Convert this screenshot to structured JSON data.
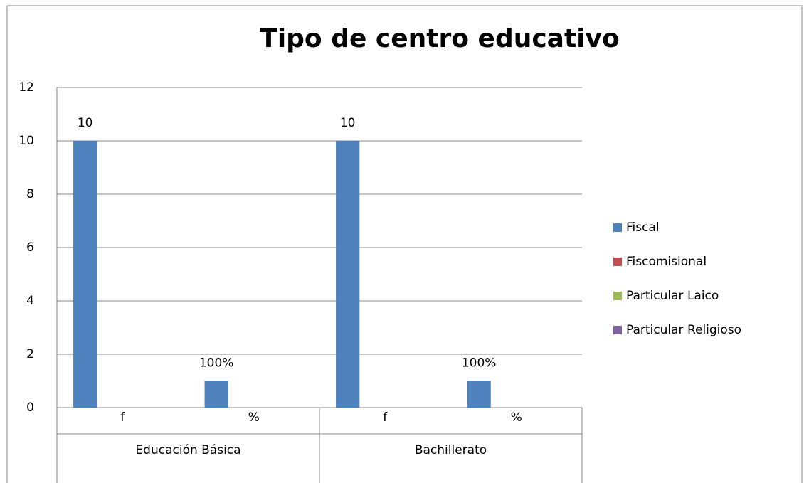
{
  "chart_data": {
    "type": "bar",
    "title": "Tipo de centro educativo",
    "groups": [
      "Educación Básica",
      "Bachillerato"
    ],
    "categories": [
      "f",
      "%",
      "f",
      "%"
    ],
    "series": [
      {
        "name": "Fiscal",
        "color": "#4f81bd",
        "values": [
          10,
          1,
          10,
          1
        ],
        "value_labels": [
          "10",
          "100%",
          "10",
          "100%"
        ]
      },
      {
        "name": "Fiscomisional",
        "color": "#c0504d",
        "values": [
          0,
          0,
          0,
          0
        ]
      },
      {
        "name": "Particular Laico",
        "color": "#9bbb59",
        "values": [
          0,
          0,
          0,
          0
        ]
      },
      {
        "name": "Particular Religioso",
        "color": "#8064a2",
        "values": [
          0,
          0,
          0,
          0
        ]
      }
    ],
    "ylim": [
      0,
      12
    ],
    "yticks": [
      0,
      2,
      4,
      6,
      8,
      10,
      12
    ],
    "grid": true,
    "legend": "right"
  }
}
